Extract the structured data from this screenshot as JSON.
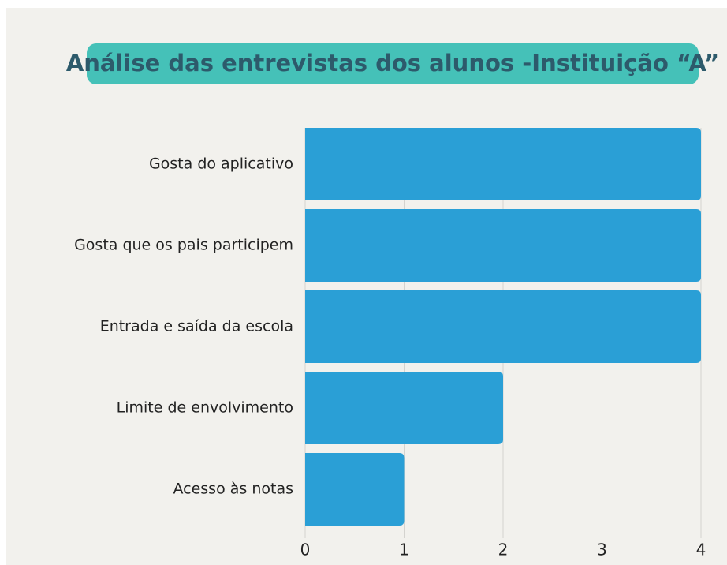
{
  "chart_data": {
    "type": "bar",
    "orientation": "horizontal",
    "title": "Análise das entrevistas dos alunos -Instituição “A”",
    "categories": [
      "Gosta do aplicativo",
      "Gosta que os pais participem",
      "Entrada e saída da escola",
      "Limite de envolvimento",
      "Acesso às notas"
    ],
    "values": [
      4,
      4,
      4,
      2,
      1
    ],
    "color": "#2a9fd6",
    "xlim": [
      0,
      4
    ],
    "xticks": [
      0,
      1,
      2,
      3,
      4
    ],
    "grid": true
  }
}
